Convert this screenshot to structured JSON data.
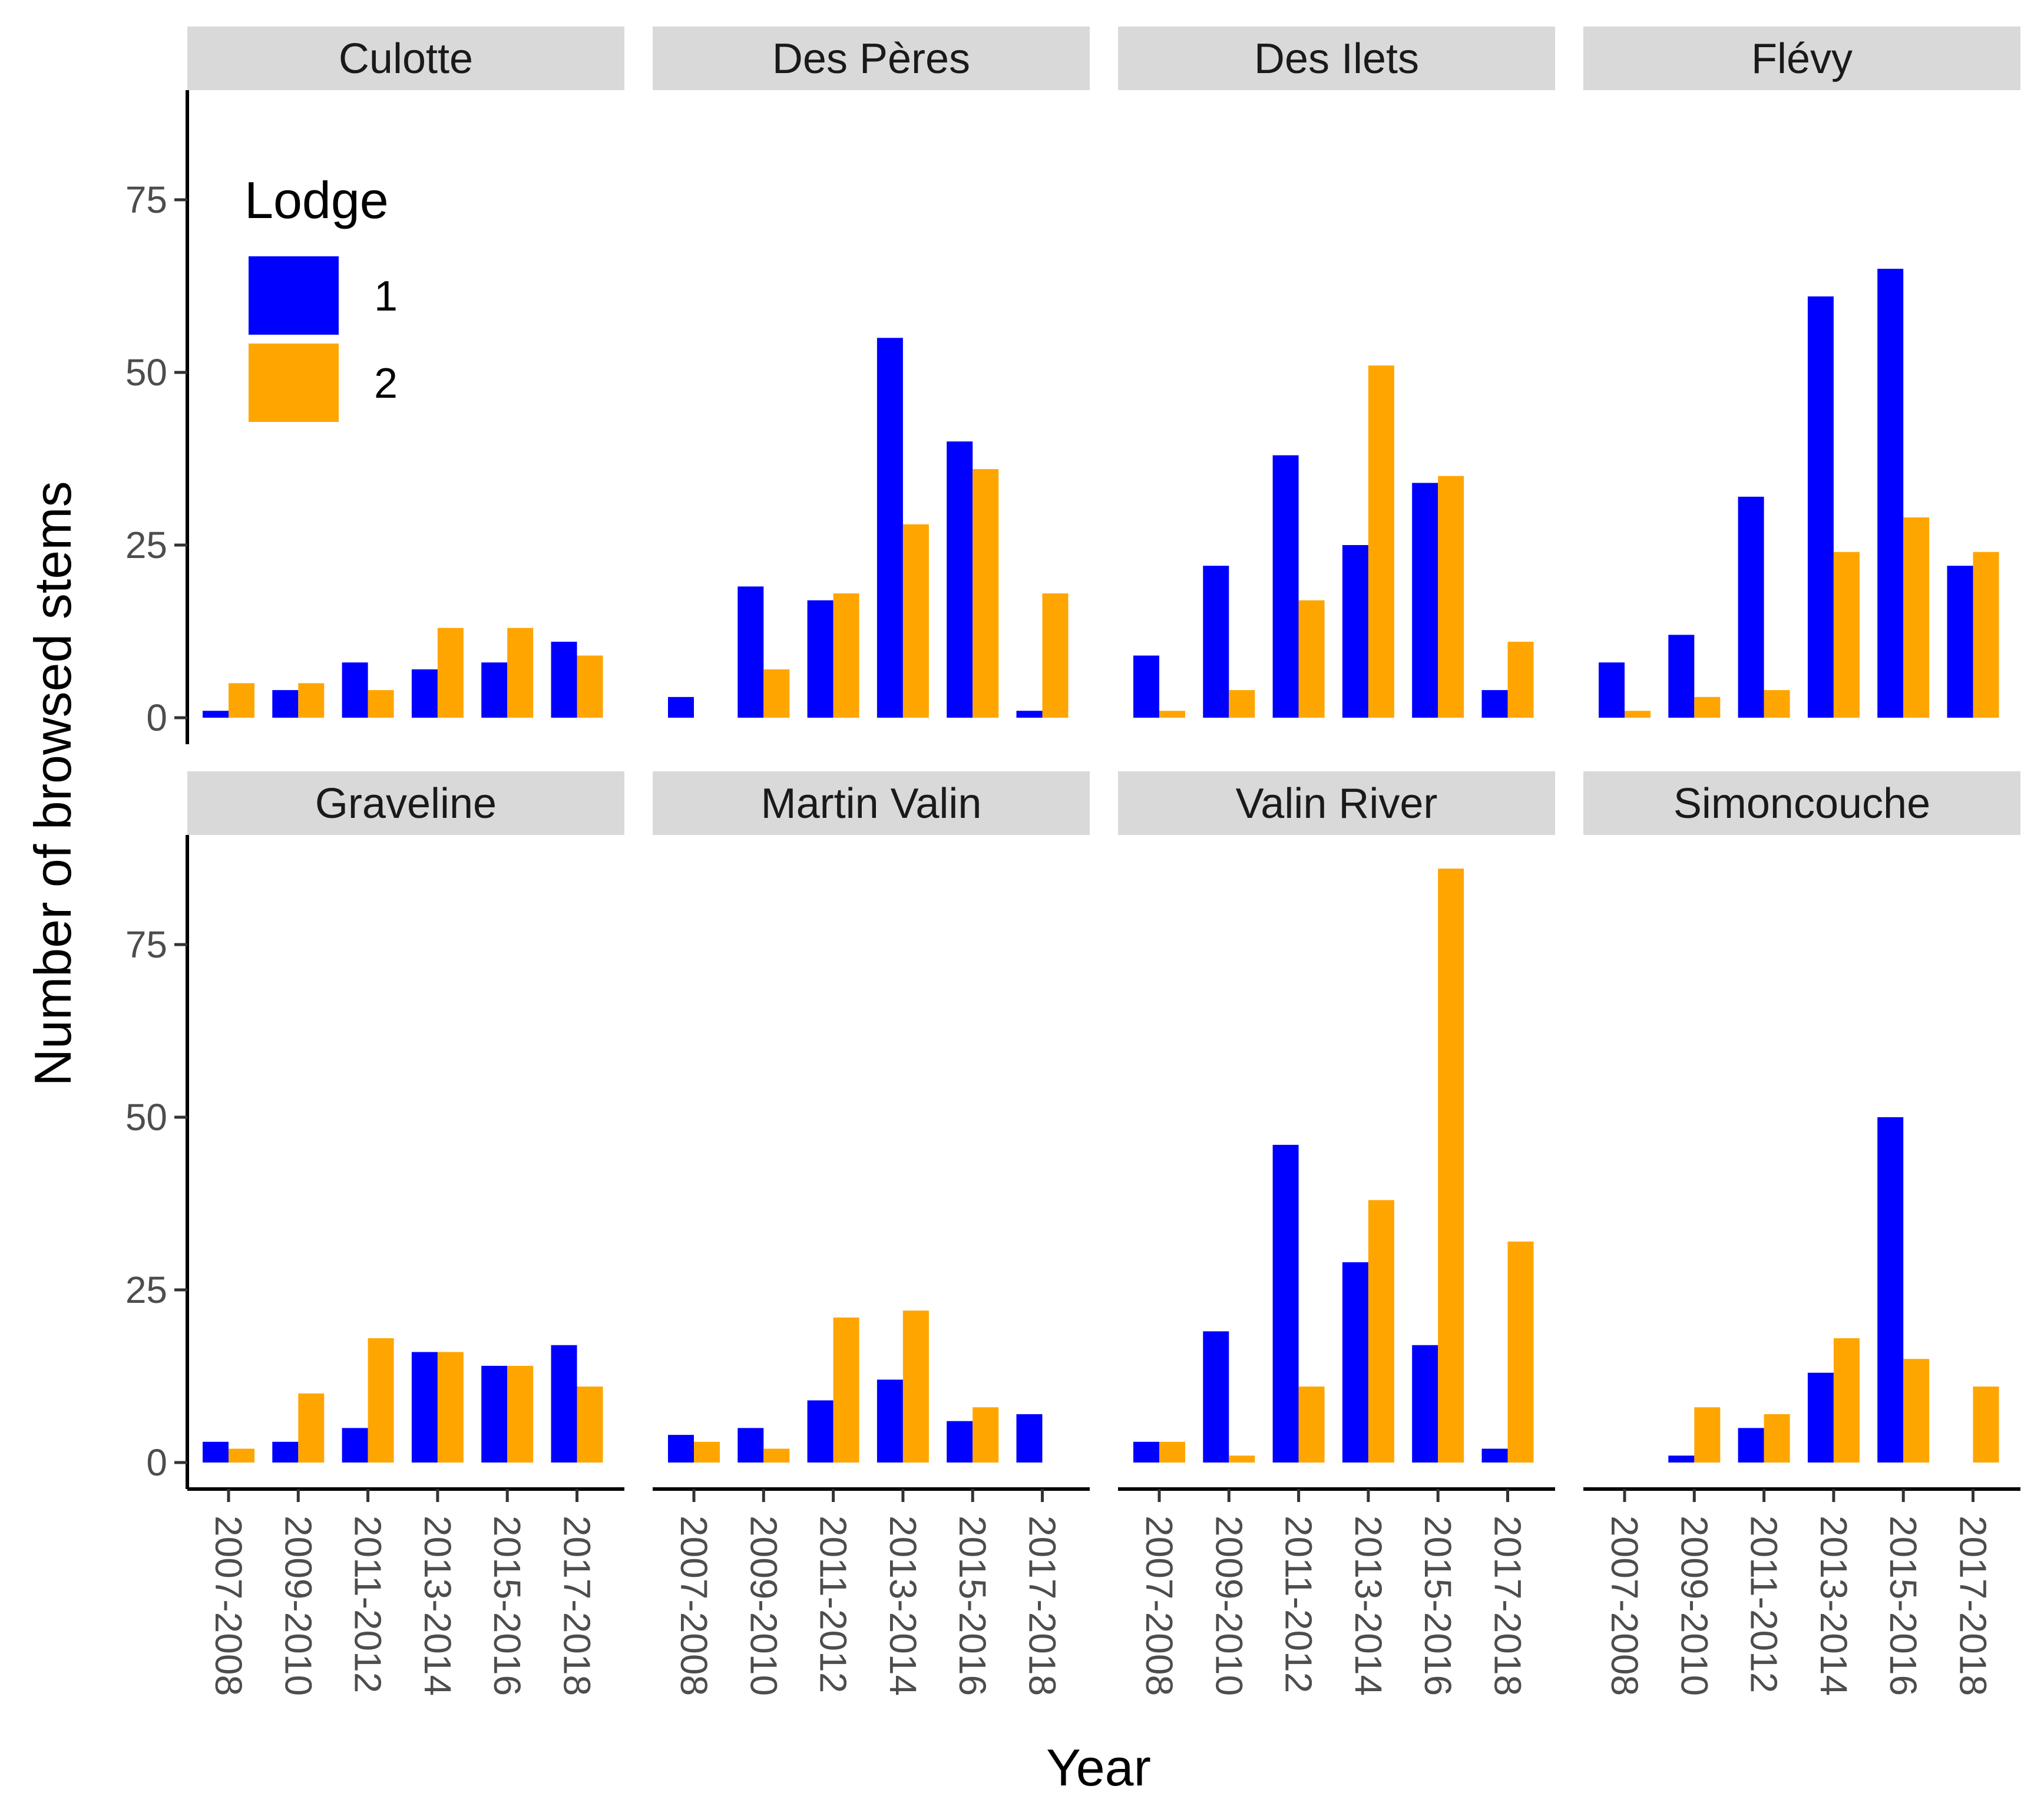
{
  "chart_data": {
    "type": "bar",
    "xlabel": "Year",
    "ylabel": "Number of browsed stems",
    "ylim": [
      0,
      90
    ],
    "yticks": [
      0,
      25,
      50,
      75
    ],
    "categories": [
      "2007-2008",
      "2009-2010",
      "2011-2012",
      "2013-2014",
      "2015-2016",
      "2017-2018"
    ],
    "legend": {
      "title": "Lodge",
      "placement": "top-left",
      "entries": [
        {
          "name": "1",
          "color": "#0000ff"
        },
        {
          "name": "2",
          "color": "#ffa500"
        }
      ]
    },
    "grid": false,
    "panels": [
      {
        "name": "Culotte",
        "series": [
          {
            "name": "1",
            "values": [
              1,
              4,
              8,
              7,
              8,
              11
            ]
          },
          {
            "name": "2",
            "values": [
              5,
              5,
              4,
              13,
              13,
              9
            ]
          }
        ]
      },
      {
        "name": "Des Pères",
        "series": [
          {
            "name": "1",
            "values": [
              3,
              19,
              17,
              55,
              40,
              1
            ]
          },
          {
            "name": "2",
            "values": [
              null,
              7,
              18,
              28,
              36,
              18
            ]
          }
        ]
      },
      {
        "name": "Des Ilets",
        "series": [
          {
            "name": "1",
            "values": [
              9,
              22,
              38,
              25,
              34,
              4
            ]
          },
          {
            "name": "2",
            "values": [
              1,
              4,
              17,
              51,
              35,
              11
            ]
          }
        ]
      },
      {
        "name": "Flévy",
        "series": [
          {
            "name": "1",
            "values": [
              8,
              12,
              32,
              61,
              65,
              22
            ]
          },
          {
            "name": "2",
            "values": [
              1,
              3,
              4,
              24,
              29,
              24
            ]
          }
        ]
      },
      {
        "name": "Graveline",
        "series": [
          {
            "name": "1",
            "values": [
              3,
              3,
              5,
              16,
              14,
              17
            ]
          },
          {
            "name": "2",
            "values": [
              2,
              10,
              18,
              16,
              14,
              11
            ]
          }
        ]
      },
      {
        "name": "Martin Valin",
        "series": [
          {
            "name": "1",
            "values": [
              4,
              5,
              9,
              12,
              6,
              7
            ]
          },
          {
            "name": "2",
            "values": [
              3,
              2,
              21,
              22,
              8,
              null
            ]
          }
        ]
      },
      {
        "name": "Valin River",
        "series": [
          {
            "name": "1",
            "values": [
              3,
              19,
              46,
              29,
              17,
              2
            ]
          },
          {
            "name": "2",
            "values": [
              3,
              1,
              11,
              38,
              86,
              32
            ]
          }
        ]
      },
      {
        "name": "Simoncouche",
        "series": [
          {
            "name": "1",
            "values": [
              null,
              1,
              5,
              13,
              50,
              null
            ]
          },
          {
            "name": "2",
            "values": [
              null,
              8,
              7,
              18,
              15,
              11
            ]
          }
        ]
      }
    ]
  }
}
